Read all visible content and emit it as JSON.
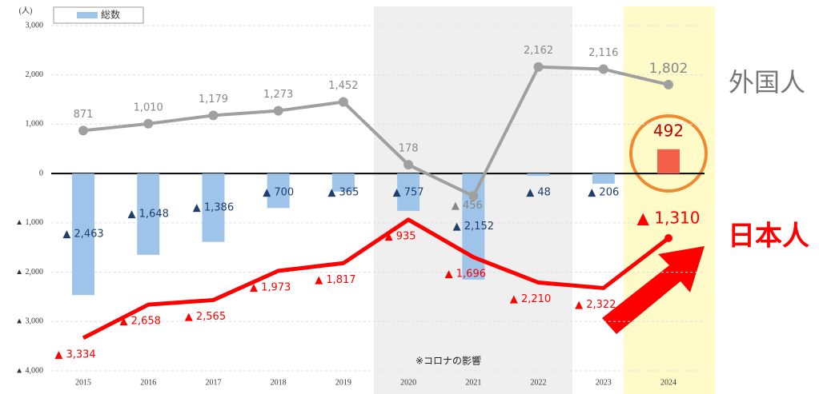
{
  "chart_data": {
    "type": "bar_line",
    "unit_label": "(人)",
    "categories": [
      "2015",
      "2016",
      "2017",
      "2018",
      "2019",
      "2020",
      "2021",
      "2022",
      "2023",
      "2024"
    ],
    "ylim": [
      -4000,
      3000
    ],
    "yticks": [
      {
        "value": 3000,
        "label": "3,000"
      },
      {
        "value": 2000,
        "label": "2,000"
      },
      {
        "value": 1000,
        "label": "1,000"
      },
      0,
      {
        "value": -1000,
        "label": "▲ 1,000"
      },
      {
        "value": -2000,
        "label": "▲ 2,000"
      },
      {
        "value": -3000,
        "label": "▲ 3,000"
      },
      {
        "value": -4000,
        "label": "▲ 4,000"
      }
    ],
    "grid": true,
    "series": [
      {
        "name": "総数",
        "kind": "bar",
        "color": "#9fc4ea",
        "colors": [
          "#9fc4ea",
          "#9fc4ea",
          "#9fc4ea",
          "#9fc4ea",
          "#9fc4ea",
          "#9fc4ea",
          "#9fc4ea",
          "#9fc4ea",
          "#9fc4ea",
          "#f4604a"
        ],
        "values": [
          -2463,
          -1648,
          -1386,
          -700,
          -365,
          -757,
          -2152,
          -48,
          -206,
          492
        ],
        "value_labels": [
          "▲ 2,463",
          "▲ 1,648",
          "▲ 1,386",
          "▲ 700",
          "▲ 365",
          "▲ 757",
          "▲ 2,152",
          "▲ 48",
          "▲ 206",
          "492"
        ]
      },
      {
        "name": "外国人",
        "kind": "line",
        "color": "#a0a0a0",
        "values": [
          871,
          1010,
          1179,
          1273,
          1452,
          178,
          -456,
          2162,
          2116,
          1802
        ],
        "value_labels": [
          "871",
          "1,010",
          "1,179",
          "1,273",
          "1,452",
          "178",
          "▲ 456",
          "2,162",
          "2,116",
          "1,802"
        ]
      },
      {
        "name": "日本人",
        "kind": "line",
        "color": "#ff0000",
        "values": [
          -3334,
          -2658,
          -2565,
          -1973,
          -1817,
          -935,
          -1696,
          -2210,
          -2322,
          -1310
        ],
        "value_labels": [
          "▲ 3,334",
          "▲ 2,658",
          "▲ 2,565",
          "▲ 1,973",
          "▲ 1,817",
          "▲ 935",
          "▲ 1,696",
          "▲ 2,210",
          "▲ 2,322",
          "▲ 1,310"
        ]
      }
    ],
    "annotations": [
      "※コロナの影響"
    ]
  }
}
